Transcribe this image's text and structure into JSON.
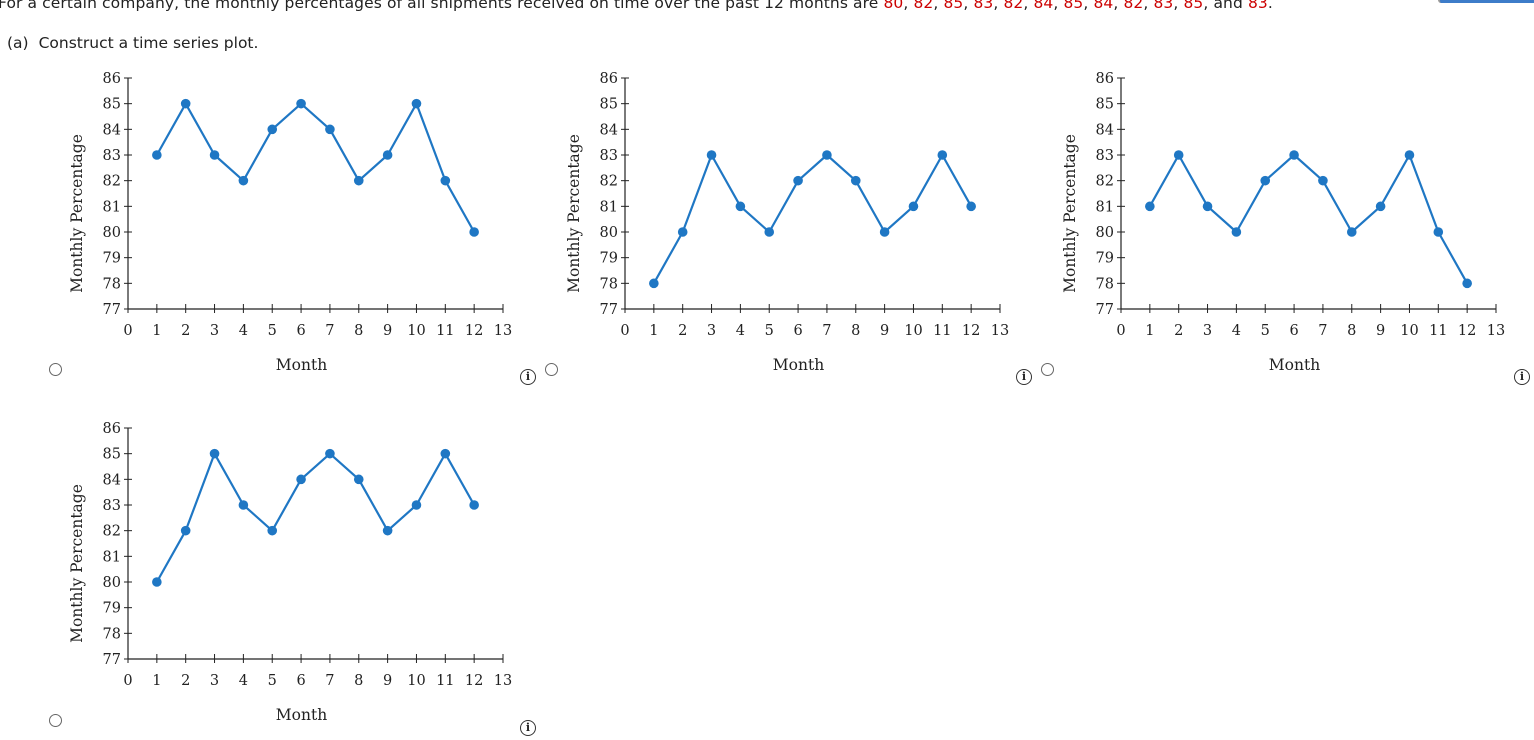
{
  "question": {
    "prefix": "For a certain company, the monthly percentages of all shipments received on time over the past 12 months are ",
    "values": [
      "80",
      "82",
      "85",
      "83",
      "82",
      "84",
      "85",
      "84",
      "82",
      "83",
      "85",
      "83"
    ],
    "conjunction": "and",
    "value_color": "#cc0000"
  },
  "part_a": {
    "label": "(a)",
    "instruction": "Construct a time series plot."
  },
  "info_icon_glyph": "i",
  "chart_data": [
    {
      "type": "line",
      "option_index": 1,
      "title": "",
      "xlabel": "Month",
      "ylabel": "Monthly Percentage",
      "x": [
        1,
        2,
        3,
        4,
        5,
        6,
        7,
        8,
        9,
        10,
        11,
        12
      ],
      "series": [
        {
          "name": "Monthly Percentage",
          "values": [
            83,
            85,
            83,
            82,
            84,
            85,
            84,
            82,
            83,
            85,
            82,
            80
          ]
        }
      ],
      "xticks": [
        "0",
        "1",
        "2",
        "3",
        "4",
        "5",
        "6",
        "7",
        "8",
        "9",
        "10",
        "11",
        "12",
        "13"
      ],
      "yticks": [
        "77",
        "78",
        "79",
        "80",
        "81",
        "82",
        "83",
        "84",
        "85",
        "86"
      ],
      "xlim": [
        0,
        13
      ],
      "ylim": [
        77,
        86
      ],
      "grid": false,
      "legend": false,
      "line_color": "#1f77c4"
    },
    {
      "type": "line",
      "option_index": 2,
      "title": "",
      "xlabel": "Month",
      "ylabel": "Monthly Percentage",
      "x": [
        1,
        2,
        3,
        4,
        5,
        6,
        7,
        8,
        9,
        10,
        11,
        12
      ],
      "series": [
        {
          "name": "Monthly Percentage",
          "values": [
            78,
            80,
            83,
            81,
            80,
            82,
            83,
            82,
            80,
            81,
            83,
            81
          ]
        }
      ],
      "xticks": [
        "0",
        "1",
        "2",
        "3",
        "4",
        "5",
        "6",
        "7",
        "8",
        "9",
        "10",
        "11",
        "12",
        "13"
      ],
      "yticks": [
        "77",
        "78",
        "79",
        "80",
        "81",
        "82",
        "83",
        "84",
        "85",
        "86"
      ],
      "xlim": [
        0,
        13
      ],
      "ylim": [
        77,
        86
      ],
      "grid": false,
      "legend": false,
      "line_color": "#1f77c4"
    },
    {
      "type": "line",
      "option_index": 3,
      "title": "",
      "xlabel": "Month",
      "ylabel": "Monthly Percentage",
      "x": [
        1,
        2,
        3,
        4,
        5,
        6,
        7,
        8,
        9,
        10,
        11,
        12
      ],
      "series": [
        {
          "name": "Monthly Percentage",
          "values": [
            81,
            83,
            81,
            80,
            82,
            83,
            82,
            80,
            81,
            83,
            80,
            78
          ]
        }
      ],
      "xticks": [
        "0",
        "1",
        "2",
        "3",
        "4",
        "5",
        "6",
        "7",
        "8",
        "9",
        "10",
        "11",
        "12",
        "13"
      ],
      "yticks": [
        "77",
        "78",
        "79",
        "80",
        "81",
        "82",
        "83",
        "84",
        "85",
        "86"
      ],
      "xlim": [
        0,
        13
      ],
      "ylim": [
        77,
        86
      ],
      "grid": false,
      "legend": false,
      "line_color": "#1f77c4"
    },
    {
      "type": "line",
      "option_index": 4,
      "title": "",
      "xlabel": "Month",
      "ylabel": "Monthly Percentage",
      "x": [
        1,
        2,
        3,
        4,
        5,
        6,
        7,
        8,
        9,
        10,
        11,
        12
      ],
      "series": [
        {
          "name": "Monthly Percentage",
          "values": [
            80,
            82,
            85,
            83,
            82,
            84,
            85,
            84,
            82,
            83,
            85,
            83
          ]
        }
      ],
      "xticks": [
        "0",
        "1",
        "2",
        "3",
        "4",
        "5",
        "6",
        "7",
        "8",
        "9",
        "10",
        "11",
        "12",
        "13"
      ],
      "yticks": [
        "77",
        "78",
        "79",
        "80",
        "81",
        "82",
        "83",
        "84",
        "85",
        "86"
      ],
      "xlim": [
        0,
        13
      ],
      "ylim": [
        77,
        86
      ],
      "grid": false,
      "legend": false,
      "line_color": "#1f77c4"
    }
  ]
}
